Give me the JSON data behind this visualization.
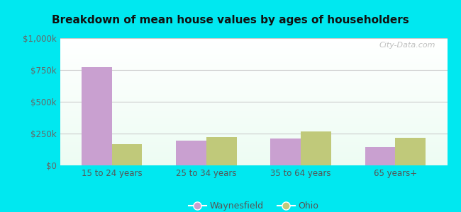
{
  "title": "Breakdown of mean house values by ages of householders",
  "categories": [
    "15 to 24 years",
    "25 to 34 years",
    "35 to 64 years",
    "65 years+"
  ],
  "waynesfield_values": [
    775000,
    195000,
    210000,
    145000
  ],
  "ohio_values": [
    165000,
    225000,
    265000,
    215000
  ],
  "waynesfield_color": "#c9a0d0",
  "ohio_color": "#c0c97a",
  "ylim": [
    0,
    1000000
  ],
  "yticks": [
    0,
    250000,
    500000,
    750000,
    1000000
  ],
  "ytick_labels": [
    "$0",
    "$250k",
    "$500k",
    "$750k",
    "$1,000k"
  ],
  "background_outer": "#00e8f0",
  "legend_labels": [
    "Waynesfield",
    "Ohio"
  ],
  "bar_width": 0.32,
  "watermark": "City-Data.com"
}
